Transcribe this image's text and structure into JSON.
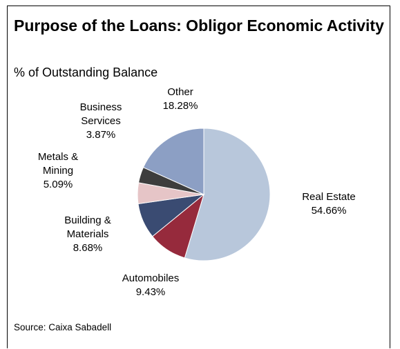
{
  "chart_data": {
    "type": "pie",
    "title": "Purpose of the Loans: Obligor Economic Activity",
    "subtitle": "% of Outstanding Balance",
    "source": "Source: Caixa Sabadell",
    "legend": "none",
    "slices": [
      {
        "name": "Real Estate",
        "label_lines": [
          "Real Estate"
        ],
        "value": 54.66,
        "value_label": "54.66%",
        "color": "#b8c7db"
      },
      {
        "name": "Automobiles",
        "label_lines": [
          "Automobiles"
        ],
        "value": 9.43,
        "value_label": "9.43%",
        "color": "#962a3c"
      },
      {
        "name": "Building & Materials",
        "label_lines": [
          "Building &",
          "Materials"
        ],
        "value": 8.68,
        "value_label": "8.68%",
        "color": "#3a4b72"
      },
      {
        "name": "Metals & Mining",
        "label_lines": [
          "Metals &",
          "Mining"
        ],
        "value": 5.09,
        "value_label": "5.09%",
        "color": "#e6c5c7"
      },
      {
        "name": "Business Services",
        "label_lines": [
          "Business",
          "Services"
        ],
        "value": 3.87,
        "value_label": "3.87%",
        "color": "#3d3d3d"
      },
      {
        "name": "Other",
        "label_lines": [
          "Other"
        ],
        "value": 18.28,
        "value_label": "18.28%",
        "color": "#8c9fc4"
      }
    ]
  }
}
